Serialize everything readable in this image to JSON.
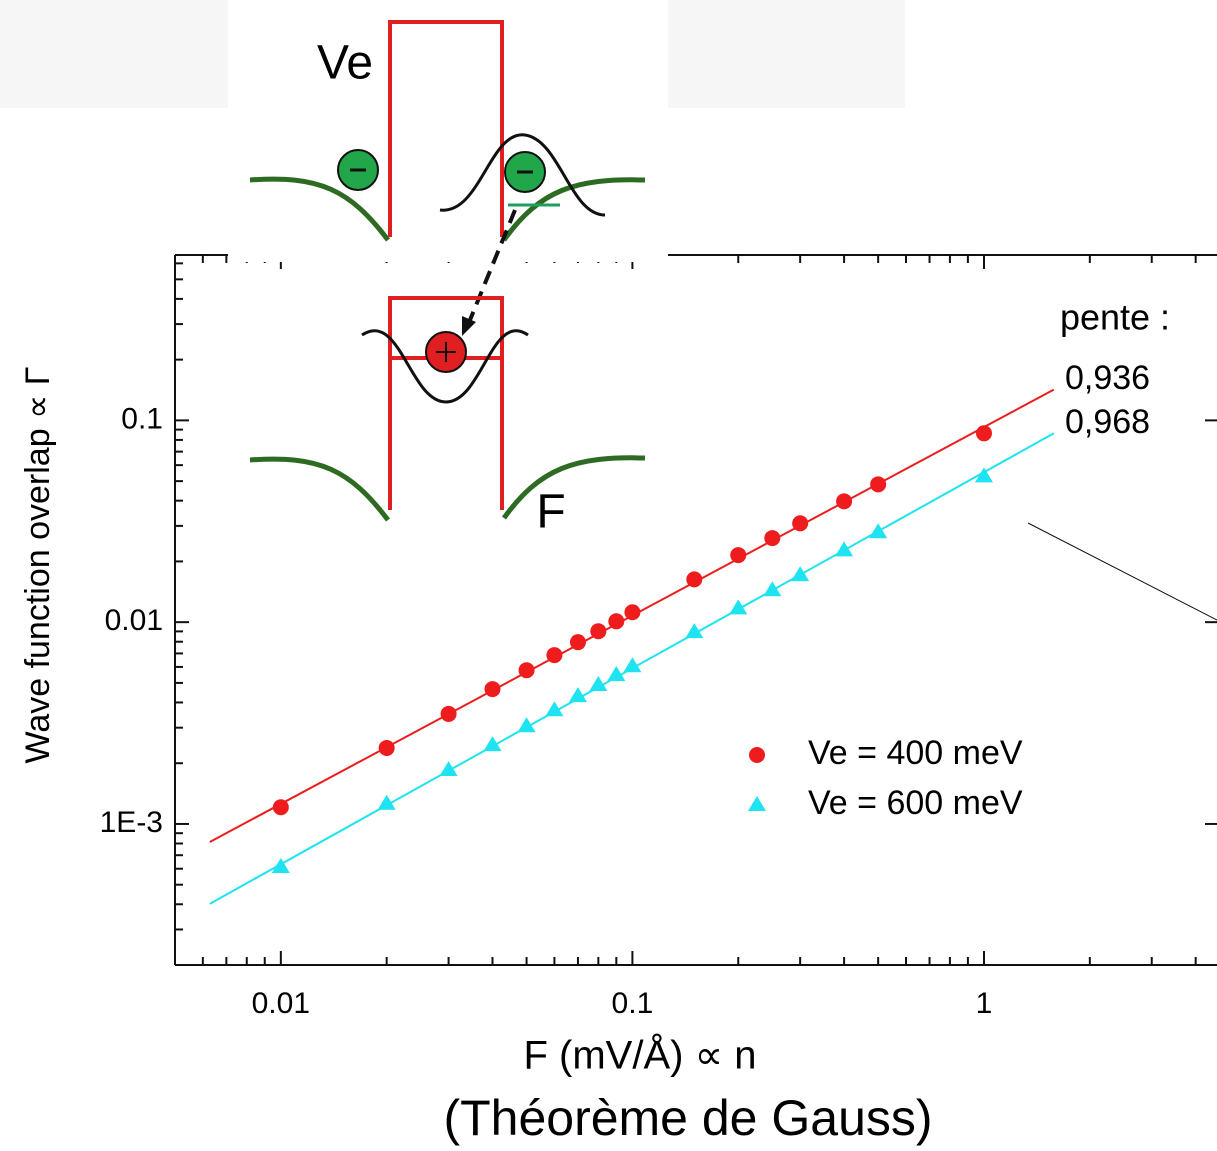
{
  "chart_data": {
    "type": "scatter",
    "xlabel": "F (mV/Å) ∝ n",
    "subtitle": "(Théorème de Gauss)",
    "ylabel": "Wave function overlap ∝ Γ",
    "xscale": "log",
    "yscale": "log",
    "xlim": [
      0.005,
      4.6
    ],
    "ylim": [
      0.0002,
      0.66
    ],
    "xticks": [
      0.01,
      0.1,
      1
    ],
    "yticks": [
      {
        "value": 0.001,
        "label": "1E-3"
      },
      0.01,
      0.1
    ],
    "xminorticks": [
      0.006,
      0.007,
      0.008,
      0.009,
      0.02,
      0.03,
      0.04,
      0.05,
      0.06,
      0.07,
      0.08,
      0.09,
      0.2,
      0.3,
      0.4,
      0.5,
      0.6,
      0.7,
      0.8,
      0.9,
      2,
      3,
      4
    ],
    "yminorticks": [
      0.0003,
      0.0004,
      0.0005,
      0.0006,
      0.0007,
      0.0008,
      0.0009,
      0.002,
      0.003,
      0.004,
      0.005,
      0.006,
      0.007,
      0.008,
      0.009,
      0.02,
      0.03,
      0.04,
      0.05,
      0.06,
      0.07,
      0.08,
      0.09,
      0.2,
      0.3,
      0.4,
      0.5,
      0.6
    ],
    "legend": "lower right",
    "annotations": [
      "pente :",
      "0,936",
      "0,968"
    ],
    "series": [
      {
        "name": "Ve = 400 meV",
        "color": "#ee1c1c",
        "marker": "circle",
        "x": [
          0.01,
          0.02,
          0.03,
          0.04,
          0.05,
          0.06,
          0.07,
          0.08,
          0.09,
          0.1,
          0.15,
          0.2,
          0.25,
          0.3,
          0.4,
          0.5,
          1
        ],
        "values": [
          0.00121,
          0.00238,
          0.00351,
          0.00466,
          0.00578,
          0.00687,
          0.00796,
          0.00902,
          0.0101,
          0.0112,
          0.0163,
          0.0215,
          0.0261,
          0.0309,
          0.0397,
          0.0482,
          0.0863
        ],
        "fit": {
          "x": [
            0.00628,
            1.58
          ],
          "values": [
            0.000814,
            0.142
          ]
        }
      },
      {
        "name": "Ve = 600 meV",
        "color": "#1ee3f0",
        "marker": "triangle",
        "x": [
          0.01,
          0.02,
          0.03,
          0.04,
          0.05,
          0.06,
          0.07,
          0.08,
          0.09,
          0.1,
          0.15,
          0.2,
          0.25,
          0.3,
          0.4,
          0.5,
          1
        ],
        "values": [
          0.000612,
          0.00126,
          0.00185,
          0.00246,
          0.00305,
          0.00366,
          0.0043,
          0.00488,
          0.00547,
          0.00605,
          0.00892,
          0.0117,
          0.0144,
          0.0171,
          0.0227,
          0.0279,
          0.0528
        ],
        "fit": {
          "x": [
            0.00628,
            1.58
          ],
          "values": [
            0.000402,
            0.0863
          ]
        }
      }
    ]
  },
  "inset": {
    "barrier_label": "Ve",
    "field_label": "F"
  }
}
